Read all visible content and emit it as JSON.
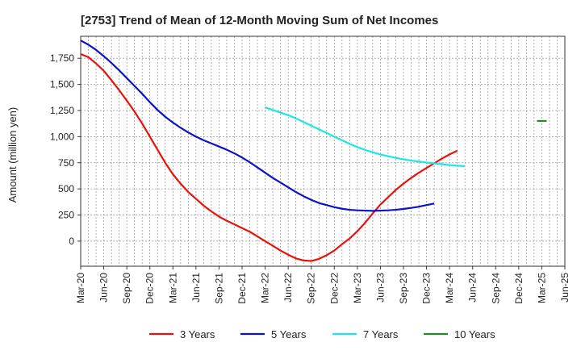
{
  "chart_data": {
    "type": "line",
    "title": "[2753]  Trend of Mean of 12-Month Moving Sum of Net Incomes",
    "ylabel": "Amount (million yen)",
    "xlabel": "",
    "x_ticks": [
      "Mar-20",
      "Jun-20",
      "Sep-20",
      "Dec-20",
      "Mar-21",
      "Jun-21",
      "Sep-21",
      "Dec-21",
      "Mar-22",
      "Jun-22",
      "Sep-22",
      "Dec-22",
      "Mar-23",
      "Jun-23",
      "Sep-23",
      "Dec-23",
      "Mar-24",
      "Jun-24",
      "Sep-24",
      "Dec-24",
      "Mar-25",
      "Jun-25"
    ],
    "y_ticks": [
      0,
      250,
      500,
      750,
      1000,
      1250,
      1500,
      1750
    ],
    "y_tick_labels": [
      "0",
      "250",
      "500",
      "750",
      "1,000",
      "1,250",
      "1,500",
      "1,750"
    ],
    "ylim": [
      -240,
      1960
    ],
    "grid": true,
    "legend_position": "bottom",
    "series": [
      {
        "name": "3 Years",
        "color": "#e8120c",
        "start": "Mar-20",
        "values": [
          1790,
          1760,
          1700,
          1630,
          1540,
          1445,
          1345,
          1240,
          1125,
          1000,
          875,
          750,
          640,
          550,
          470,
          405,
          340,
          285,
          235,
          195,
          160,
          125,
          90,
          45,
          0,
          -45,
          -90,
          -130,
          -165,
          -185,
          -190,
          -170,
          -135,
          -90,
          -30,
          25,
          95,
          175,
          265,
          350,
          420,
          490,
          550,
          605,
          655,
          700,
          745,
          790,
          830,
          865
        ]
      },
      {
        "name": "5 Years",
        "color": "#0c12c8",
        "start": "Mar-20",
        "values": [
          1920,
          1880,
          1830,
          1770,
          1705,
          1635,
          1560,
          1485,
          1410,
          1330,
          1255,
          1190,
          1135,
          1085,
          1040,
          1000,
          965,
          935,
          905,
          875,
          840,
          800,
          755,
          705,
          655,
          605,
          560,
          515,
          470,
          430,
          395,
          365,
          345,
          325,
          310,
          300,
          295,
          292,
          290,
          292,
          295,
          300,
          308,
          318,
          330,
          345,
          360
        ]
      },
      {
        "name": "7 Years",
        "color": "#1ee6e6",
        "start": "Mar-22",
        "values": [
          1280,
          1255,
          1230,
          1205,
          1175,
          1140,
          1105,
          1070,
          1035,
          1000,
          965,
          930,
          900,
          873,
          850,
          830,
          812,
          797,
          783,
          771,
          762,
          752,
          744,
          736,
          728,
          722,
          718
        ]
      },
      {
        "name": "10 Years",
        "color": "#228b22",
        "start": "Mar-25",
        "values": [
          1150
        ]
      }
    ]
  }
}
